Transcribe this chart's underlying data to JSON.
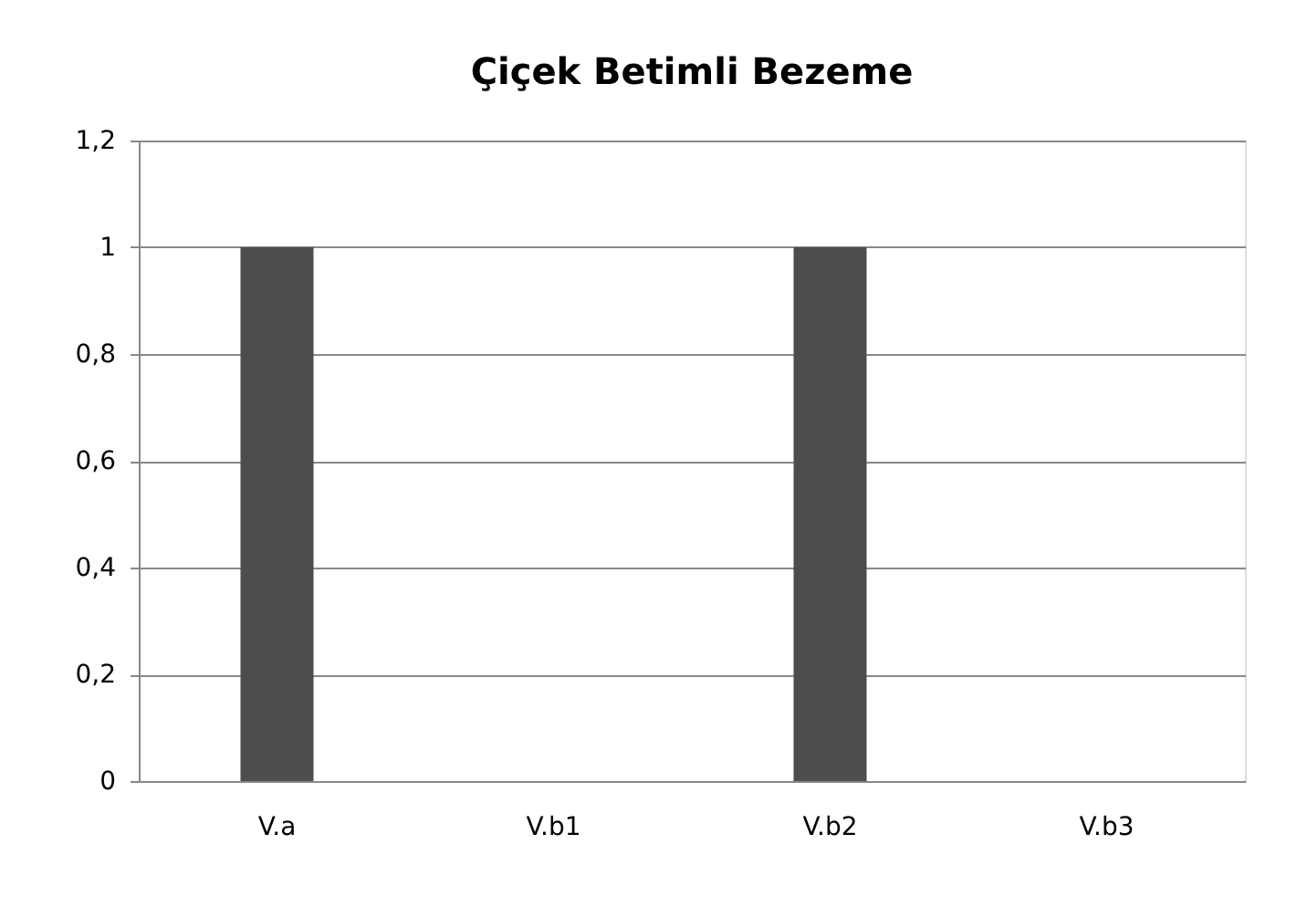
{
  "chart_data": {
    "type": "bar",
    "title": "Çiçek Betimli Bezeme",
    "categories": [
      "V.a",
      "V.b1",
      "V.b2",
      "V.b3"
    ],
    "values": [
      1,
      0,
      1,
      0
    ],
    "color": "#4d4d4d",
    "ylim": [
      0,
      1.2
    ],
    "yticks": [
      0,
      {
        "value": 0.2,
        "label": "0,2"
      },
      {
        "value": 0.4,
        "label": "0,4"
      },
      {
        "value": 0.6,
        "label": "0,6"
      },
      {
        "value": 0.8,
        "label": "0,8"
      },
      1,
      {
        "value": 1.2,
        "label": "1,2"
      }
    ],
    "grid": "y"
  }
}
